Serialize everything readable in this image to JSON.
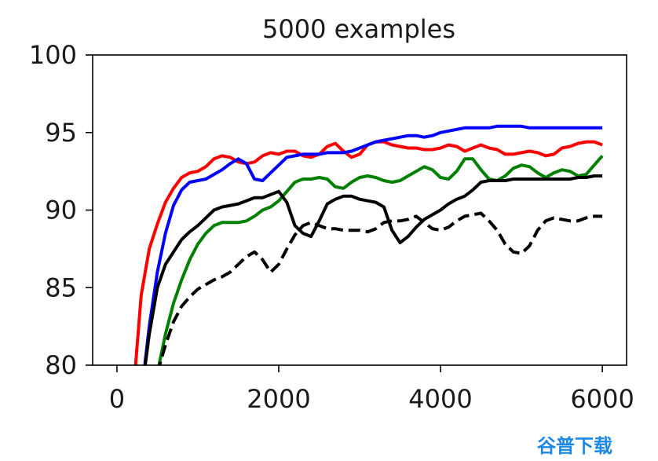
{
  "chart_data": {
    "type": "line",
    "title": "5000 examples",
    "xlabel": "",
    "ylabel": "",
    "xlim": [
      -300,
      6300
    ],
    "ylim": [
      80,
      100
    ],
    "xticks": [
      0,
      2000,
      4000,
      6000
    ],
    "yticks": [
      80,
      85,
      90,
      95,
      100
    ],
    "xtick_labels": [
      "0",
      "2000",
      "4000",
      "6000"
    ],
    "ytick_labels": [
      "80",
      "85",
      "90",
      "95",
      "100"
    ],
    "grid": false,
    "series": [
      {
        "color": "#ff0000",
        "style": "solid",
        "x": [
          200,
          300,
          400,
          500,
          600,
          700,
          800,
          900,
          1000,
          1100,
          1200,
          1300,
          1400,
          1500,
          1600,
          1700,
          1800,
          1900,
          2000,
          2100,
          2200,
          2300,
          2400,
          2500,
          2600,
          2700,
          2800,
          2900,
          3000,
          3100,
          3200,
          3300,
          3400,
          3500,
          3600,
          3700,
          3800,
          3900,
          4000,
          4100,
          4200,
          4300,
          4400,
          4500,
          4600,
          4700,
          4800,
          4900,
          5000,
          5100,
          5200,
          5300,
          5400,
          5500,
          5600,
          5700,
          5800,
          5900,
          6000
        ],
        "y": [
          78,
          84.5,
          87.5,
          89.1,
          90.5,
          91.4,
          92.1,
          92.4,
          92.5,
          92.8,
          93.3,
          93.5,
          93.4,
          93.1,
          93.0,
          93.1,
          93.5,
          93.7,
          93.6,
          93.8,
          93.8,
          93.5,
          93.4,
          93.6,
          94.1,
          94.3,
          93.8,
          93.4,
          93.6,
          94.2,
          94.4,
          94.4,
          94.2,
          94.1,
          94.0,
          94.0,
          93.9,
          93.9,
          94.0,
          94.2,
          94.1,
          93.8,
          94.0,
          94.2,
          94.0,
          93.9,
          93.6,
          93.6,
          93.7,
          93.8,
          93.7,
          93.5,
          93.6,
          94.0,
          94.1,
          94.3,
          94.4,
          94.4,
          94.2
        ]
      },
      {
        "color": "#0000ff",
        "style": "solid",
        "x": [
          300,
          400,
          500,
          600,
          700,
          800,
          900,
          1000,
          1100,
          1200,
          1300,
          1400,
          1500,
          1600,
          1700,
          1800,
          1900,
          2000,
          2100,
          2200,
          2300,
          2400,
          2500,
          2600,
          2700,
          2800,
          2900,
          3000,
          3100,
          3200,
          3300,
          3400,
          3500,
          3600,
          3700,
          3800,
          3900,
          4000,
          4100,
          4200,
          4300,
          4400,
          4500,
          4600,
          4700,
          4800,
          4900,
          5000,
          5100,
          5200,
          5300,
          5400,
          5500,
          5600,
          5700,
          5800,
          5900,
          6000
        ],
        "y": [
          78,
          82.5,
          86.0,
          88.5,
          90.3,
          91.3,
          91.8,
          91.9,
          92.0,
          92.3,
          92.6,
          93.0,
          93.3,
          93.0,
          92.0,
          91.9,
          92.4,
          92.9,
          93.4,
          93.5,
          93.6,
          93.6,
          93.6,
          93.7,
          93.7,
          93.7,
          93.8,
          94.0,
          94.2,
          94.4,
          94.5,
          94.6,
          94.7,
          94.8,
          94.8,
          94.7,
          94.8,
          95.0,
          95.1,
          95.2,
          95.3,
          95.3,
          95.3,
          95.3,
          95.4,
          95.4,
          95.4,
          95.4,
          95.3,
          95.3,
          95.3,
          95.3,
          95.3,
          95.3,
          95.3,
          95.3,
          95.3,
          95.3
        ]
      },
      {
        "color": "#008000",
        "style": "solid",
        "x": [
          500,
          600,
          700,
          800,
          900,
          1000,
          1100,
          1200,
          1300,
          1400,
          1500,
          1600,
          1700,
          1800,
          1900,
          2000,
          2100,
          2200,
          2300,
          2400,
          2500,
          2600,
          2700,
          2800,
          2900,
          3000,
          3100,
          3200,
          3300,
          3400,
          3500,
          3600,
          3700,
          3800,
          3900,
          4000,
          4100,
          4200,
          4300,
          4400,
          4500,
          4600,
          4700,
          4800,
          4900,
          5000,
          5100,
          5200,
          5300,
          5400,
          5500,
          5600,
          5700,
          5800,
          5900,
          6000
        ],
        "y": [
          79.5,
          82.0,
          84.0,
          85.5,
          86.8,
          87.8,
          88.5,
          89.0,
          89.2,
          89.2,
          89.2,
          89.3,
          89.6,
          90.0,
          90.2,
          90.6,
          91.2,
          91.8,
          92.0,
          92.0,
          92.1,
          92.0,
          91.5,
          91.4,
          91.8,
          92.1,
          92.2,
          92.1,
          91.9,
          91.8,
          91.9,
          92.2,
          92.5,
          92.8,
          92.6,
          92.1,
          92.0,
          92.5,
          93.3,
          93.3,
          92.6,
          92.0,
          91.9,
          92.2,
          92.7,
          92.9,
          92.8,
          92.4,
          92.1,
          92.4,
          92.6,
          92.5,
          92.2,
          92.3,
          92.9,
          93.5
        ]
      },
      {
        "color": "#000000",
        "style": "solid",
        "x": [
          300,
          400,
          500,
          600,
          700,
          800,
          900,
          1000,
          1100,
          1200,
          1300,
          1400,
          1500,
          1600,
          1700,
          1800,
          1900,
          2000,
          2100,
          2200,
          2300,
          2400,
          2500,
          2600,
          2700,
          2800,
          2900,
          3000,
          3100,
          3200,
          3300,
          3400,
          3500,
          3600,
          3700,
          3800,
          3900,
          4000,
          4100,
          4200,
          4300,
          4400,
          4500,
          4600,
          4700,
          4800,
          4900,
          5000,
          5100,
          5200,
          5300,
          5400,
          5500,
          5600,
          5700,
          5800,
          5900,
          6000
        ],
        "y": [
          78,
          82.0,
          85.0,
          86.5,
          87.3,
          88.1,
          88.6,
          89.0,
          89.5,
          90.0,
          90.2,
          90.3,
          90.4,
          90.6,
          90.8,
          90.8,
          91.0,
          91.2,
          90.5,
          89.0,
          88.5,
          88.3,
          89.3,
          90.4,
          90.7,
          90.9,
          90.9,
          90.7,
          90.6,
          90.5,
          90.2,
          88.7,
          87.9,
          88.3,
          88.9,
          89.4,
          89.7,
          90.0,
          90.4,
          90.7,
          90.9,
          91.3,
          91.8,
          91.9,
          91.9,
          91.9,
          92.0,
          92.0,
          92.0,
          92.0,
          92.0,
          92.0,
          92.0,
          92.0,
          92.1,
          92.1,
          92.2,
          92.2
        ]
      },
      {
        "color": "#000000",
        "style": "dashed",
        "x": [
          500,
          600,
          700,
          800,
          900,
          1000,
          1100,
          1200,
          1300,
          1400,
          1500,
          1600,
          1700,
          1800,
          1900,
          2000,
          2100,
          2200,
          2300,
          2400,
          2500,
          2600,
          2700,
          2800,
          2900,
          3000,
          3100,
          3200,
          3300,
          3400,
          3500,
          3600,
          3700,
          3800,
          3900,
          4000,
          4100,
          4200,
          4300,
          4400,
          4500,
          4600,
          4700,
          4800,
          4900,
          5000,
          5100,
          5200,
          5300,
          5400,
          5500,
          5600,
          5700,
          5800,
          5900,
          6000
        ],
        "y": [
          79.5,
          81.3,
          82.8,
          83.8,
          84.4,
          84.9,
          85.2,
          85.5,
          85.7,
          86.0,
          86.5,
          87.0,
          87.3,
          86.8,
          86.0,
          86.5,
          87.5,
          88.4,
          89.0,
          89.2,
          89.0,
          88.8,
          88.8,
          88.7,
          88.7,
          88.7,
          88.6,
          88.8,
          89.2,
          89.3,
          89.3,
          89.4,
          89.6,
          89.2,
          88.8,
          88.7,
          88.9,
          89.3,
          89.6,
          89.7,
          89.8,
          89.3,
          88.7,
          87.8,
          87.3,
          87.2,
          87.7,
          88.7,
          89.3,
          89.5,
          89.4,
          89.3,
          89.3,
          89.5,
          89.6,
          89.6
        ]
      }
    ]
  },
  "watermark_text": "谷普下载"
}
